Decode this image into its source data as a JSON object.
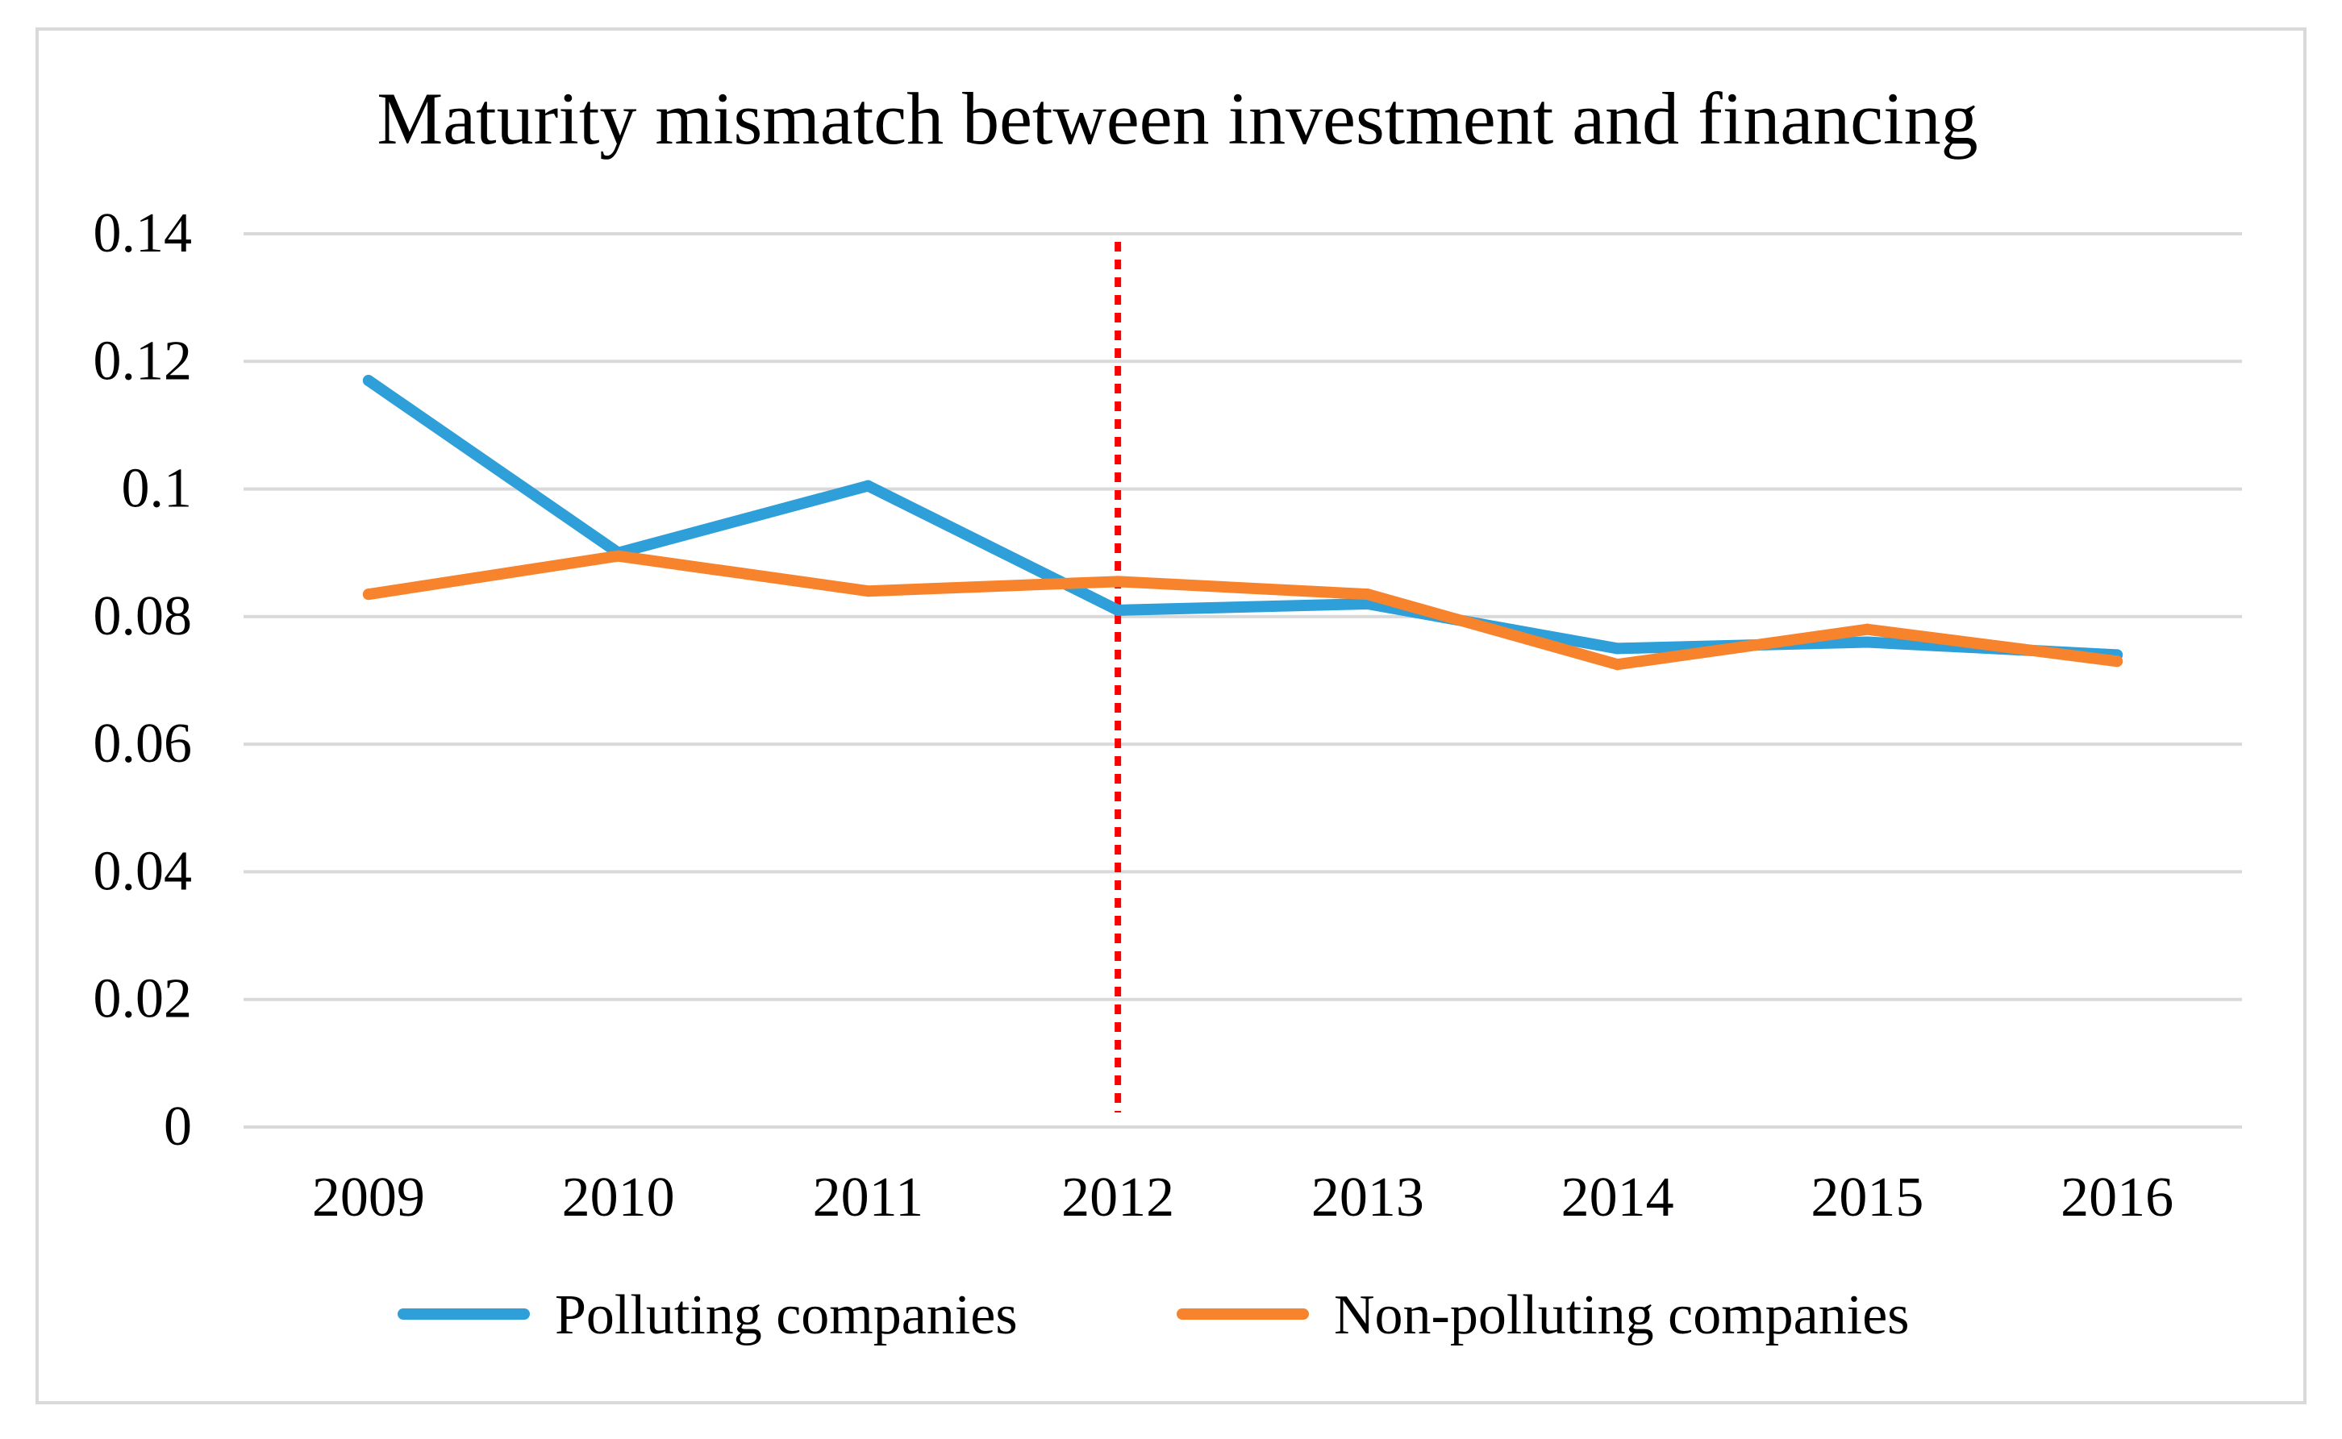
{
  "chart_data": {
    "type": "line",
    "title": "Maturity mismatch between investment and financing",
    "xlabel": "",
    "ylabel": "",
    "categories": [
      "2009",
      "2010",
      "2011",
      "2012",
      "2013",
      "2014",
      "2015",
      "2016"
    ],
    "ylim": [
      0,
      0.14
    ],
    "yticks": [
      0,
      0.02,
      0.04,
      0.06,
      0.08,
      0.1,
      0.12,
      0.14
    ],
    "ytick_labels": [
      "0",
      "0.02",
      "0.04",
      "0.06",
      "0.08",
      "0.1",
      "0.12",
      "0.14"
    ],
    "grid": true,
    "legend_position": "bottom",
    "series": [
      {
        "name": "Polluting companies",
        "color": "#2E9FD8",
        "values": [
          0.117,
          0.09,
          0.1005,
          0.081,
          0.082,
          0.075,
          0.076,
          0.074
        ]
      },
      {
        "name": "Non-polluting companies",
        "color": "#F7832D",
        "values": [
          0.0835,
          0.0895,
          0.084,
          0.0855,
          0.0835,
          0.0725,
          0.078,
          0.073
        ]
      }
    ],
    "annotations": [
      {
        "type": "vertical-dotted-line",
        "at": "2012",
        "color": "#FF0000"
      }
    ]
  }
}
